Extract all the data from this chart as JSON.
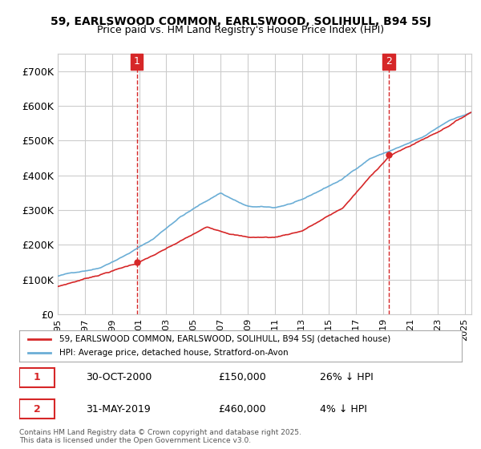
{
  "title": "59, EARLSWOOD COMMON, EARLSWOOD, SOLIHULL, B94 5SJ",
  "subtitle": "Price paid vs. HM Land Registry's House Price Index (HPI)",
  "legend_line1": "59, EARLSWOOD COMMON, EARLSWOOD, SOLIHULL, B94 5SJ (detached house)",
  "legend_line2": "HPI: Average price, detached house, Stratford-on-Avon",
  "annotation1_label": "1",
  "annotation1_date": "30-OCT-2000",
  "annotation1_price": "£150,000",
  "annotation1_hpi": "26% ↓ HPI",
  "annotation2_label": "2",
  "annotation2_date": "31-MAY-2019",
  "annotation2_price": "£460,000",
  "annotation2_hpi": "4% ↓ HPI",
  "footnote": "Contains HM Land Registry data © Crown copyright and database right 2025.\nThis data is licensed under the Open Government Licence v3.0.",
  "hpi_color": "#6baed6",
  "price_color": "#d62728",
  "vline_color": "#d62728",
  "annotation_box_color": "#d62728",
  "grid_color": "#cccccc",
  "bg_color": "#ffffff",
  "ylim": [
    0,
    750000
  ],
  "yticks": [
    0,
    100000,
    200000,
    300000,
    400000,
    500000,
    600000,
    700000
  ],
  "ytick_labels": [
    "£0",
    "£100K",
    "£200K",
    "£300K",
    "£400K",
    "£500K",
    "£600K",
    "£700K"
  ],
  "xmin_year": 1995.0,
  "xmax_year": 2025.5,
  "xticks": [
    1995,
    1997,
    1999,
    2001,
    2003,
    2005,
    2007,
    2009,
    2011,
    2013,
    2015,
    2017,
    2019,
    2021,
    2023,
    2025
  ],
  "vline1_x": 2000.83,
  "vline2_x": 2019.42,
  "sale1_x": 2000.83,
  "sale1_y": 150000,
  "sale2_x": 2019.42,
  "sale2_y": 460000
}
